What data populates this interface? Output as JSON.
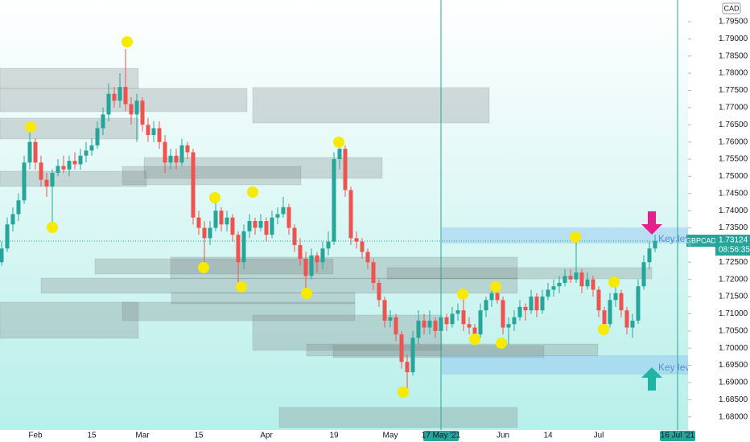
{
  "chart_data": {
    "type": "candlestick",
    "symbol": "GBPCAD",
    "currency": "CAD",
    "categories": [
      null,
      null,
      null,
      null,
      null,
      null,
      "Feb",
      null,
      null,
      null,
      null,
      null,
      null,
      null,
      null,
      null,
      "15",
      null,
      null,
      null,
      null,
      null,
      null,
      null,
      null,
      "Mar",
      null,
      null,
      null,
      null,
      null,
      null,
      null,
      null,
      null,
      "15",
      null,
      null,
      null,
      null,
      null,
      null,
      null,
      null,
      null,
      null,
      null,
      "Apr",
      null,
      null,
      null,
      null,
      null,
      null,
      null,
      null,
      null,
      null,
      null,
      "19",
      null,
      null,
      null,
      null,
      null,
      null,
      null,
      null,
      null,
      "May",
      null,
      null,
      null,
      null,
      null,
      null,
      null,
      null,
      "17 May '21",
      null,
      null,
      null,
      null,
      null,
      null,
      null,
      null,
      null,
      null,
      "Jun",
      null,
      null,
      null,
      null,
      null,
      null,
      null,
      "14",
      null,
      null,
      null,
      null,
      null,
      null,
      null,
      null,
      "Jul",
      null,
      null,
      null,
      null,
      null,
      null,
      null,
      null,
      null,
      null,
      null,
      null,
      null,
      "16 Jul '21"
    ],
    "ohlc": [
      [
        1.725,
        1.731,
        1.724,
        1.729
      ],
      [
        1.729,
        1.738,
        1.728,
        1.736
      ],
      [
        1.736,
        1.741,
        1.734,
        1.739
      ],
      [
        1.739,
        1.745,
        1.737,
        1.743
      ],
      [
        1.743,
        1.756,
        1.742,
        1.754
      ],
      [
        1.754,
        1.764,
        1.752,
        1.76
      ],
      [
        1.76,
        1.761,
        1.752,
        1.754
      ],
      [
        1.754,
        1.756,
        1.747,
        1.749
      ],
      [
        1.749,
        1.751,
        1.744,
        1.747
      ],
      [
        1.747,
        1.752,
        1.735,
        1.751
      ],
      [
        1.751,
        1.755,
        1.75,
        1.753
      ],
      [
        1.753,
        1.756,
        1.751,
        1.752
      ],
      [
        1.752,
        1.756,
        1.75,
        1.7545
      ],
      [
        1.7545,
        1.757,
        1.752,
        1.7535
      ],
      [
        1.7535,
        1.758,
        1.752,
        1.756
      ],
      [
        1.756,
        1.76,
        1.754,
        1.7575
      ],
      [
        1.7575,
        1.761,
        1.756,
        1.759
      ],
      [
        1.759,
        1.766,
        1.758,
        1.764
      ],
      [
        1.764,
        1.77,
        1.762,
        1.768
      ],
      [
        1.768,
        1.777,
        1.766,
        1.774
      ],
      [
        1.774,
        1.776,
        1.77,
        1.772
      ],
      [
        1.772,
        1.78,
        1.77,
        1.776
      ],
      [
        1.776,
        1.787,
        1.769,
        1.771
      ],
      [
        1.771,
        1.773,
        1.765,
        1.768
      ],
      [
        1.768,
        1.774,
        1.76,
        1.772
      ],
      [
        1.772,
        1.773,
        1.763,
        1.765
      ],
      [
        1.765,
        1.767,
        1.76,
        1.762
      ],
      [
        1.762,
        1.766,
        1.76,
        1.764
      ],
      [
        1.764,
        1.766,
        1.758,
        1.76
      ],
      [
        1.76,
        1.762,
        1.751,
        1.754
      ],
      [
        1.754,
        1.758,
        1.752,
        1.756
      ],
      [
        1.756,
        1.758,
        1.752,
        1.754
      ],
      [
        1.754,
        1.761,
        1.753,
        1.759
      ],
      [
        1.759,
        1.76,
        1.755,
        1.757
      ],
      [
        1.757,
        1.758,
        1.736,
        1.738
      ],
      [
        1.738,
        1.74,
        1.733,
        1.735
      ],
      [
        1.735,
        1.737,
        1.724,
        1.732
      ],
      [
        1.732,
        1.737,
        1.73,
        1.735
      ],
      [
        1.735,
        1.743,
        1.734,
        1.74
      ],
      [
        1.74,
        1.741,
        1.734,
        1.736
      ],
      [
        1.736,
        1.74,
        1.734,
        1.738
      ],
      [
        1.738,
        1.739,
        1.731,
        1.733
      ],
      [
        1.733,
        1.734,
        1.718,
        1.725
      ],
      [
        1.725,
        1.736,
        1.723,
        1.734
      ],
      [
        1.734,
        1.739,
        1.732,
        1.737
      ],
      [
        1.737,
        1.738,
        1.733,
        1.735
      ],
      [
        1.735,
        1.739,
        1.734,
        1.737
      ],
      [
        1.737,
        1.738,
        1.731,
        1.733
      ],
      [
        1.733,
        1.74,
        1.732,
        1.738
      ],
      [
        1.738,
        1.741,
        1.736,
        1.739
      ],
      [
        1.739,
        1.744,
        1.738,
        1.741
      ],
      [
        1.741,
        1.742,
        1.733,
        1.735
      ],
      [
        1.735,
        1.736,
        1.728,
        1.73
      ],
      [
        1.73,
        1.732,
        1.724,
        1.726
      ],
      [
        1.726,
        1.728,
        1.7165,
        1.721
      ],
      [
        1.721,
        1.729,
        1.72,
        1.727
      ],
      [
        1.727,
        1.728,
        1.722,
        1.725
      ],
      [
        1.725,
        1.731,
        1.723,
        1.729
      ],
      [
        1.729,
        1.734,
        1.727,
        1.731
      ],
      [
        1.731,
        1.757,
        1.73,
        1.755
      ],
      [
        1.755,
        1.76,
        1.752,
        1.758
      ],
      [
        1.758,
        1.759,
        1.744,
        1.746
      ],
      [
        1.746,
        1.747,
        1.73,
        1.732
      ],
      [
        1.732,
        1.734,
        1.729,
        1.731
      ],
      [
        1.731,
        1.732,
        1.726,
        1.728
      ],
      [
        1.728,
        1.729,
        1.723,
        1.725
      ],
      [
        1.725,
        1.726,
        1.717,
        1.719
      ],
      [
        1.719,
        1.72,
        1.712,
        1.714
      ],
      [
        1.714,
        1.715,
        1.706,
        1.708
      ],
      [
        1.708,
        1.711,
        1.706,
        1.709
      ],
      [
        1.709,
        1.71,
        1.702,
        1.704
      ],
      [
        1.704,
        1.705,
        1.694,
        1.696
      ],
      [
        1.696,
        1.698,
        1.687,
        1.693
      ],
      [
        1.693,
        1.705,
        1.692,
        1.703
      ],
      [
        1.703,
        1.711,
        1.701,
        1.708
      ],
      [
        1.708,
        1.71,
        1.704,
        1.706
      ],
      [
        1.706,
        1.711,
        1.704,
        1.708
      ],
      [
        1.708,
        1.709,
        1.703,
        1.705
      ],
      [
        1.705,
        1.711,
        1.704,
        1.709
      ],
      [
        1.709,
        1.71,
        1.705,
        1.707
      ],
      [
        1.707,
        1.712,
        1.706,
        1.71
      ],
      [
        1.71,
        1.713,
        1.708,
        1.711
      ],
      [
        1.711,
        1.716,
        1.705,
        1.707
      ],
      [
        1.707,
        1.709,
        1.704,
        1.706
      ],
      [
        1.706,
        1.707,
        1.7015,
        1.704
      ],
      [
        1.704,
        1.713,
        1.703,
        1.711
      ],
      [
        1.711,
        1.715,
        1.709,
        1.714
      ],
      [
        1.714,
        1.717,
        1.712,
        1.716
      ],
      [
        1.716,
        1.718,
        1.713,
        1.714
      ],
      [
        1.714,
        1.715,
        1.704,
        1.706
      ],
      [
        1.706,
        1.709,
        1.701,
        1.707
      ],
      [
        1.707,
        1.711,
        1.705,
        1.709
      ],
      [
        1.709,
        1.714,
        1.708,
        1.712
      ],
      [
        1.712,
        1.713,
        1.708,
        1.711
      ],
      [
        1.711,
        1.717,
        1.71,
        1.715
      ],
      [
        1.715,
        1.716,
        1.709,
        1.711
      ],
      [
        1.711,
        1.717,
        1.71,
        1.715
      ],
      [
        1.715,
        1.719,
        1.714,
        1.717
      ],
      [
        1.717,
        1.72,
        1.715,
        1.718
      ],
      [
        1.718,
        1.721,
        1.716,
        1.719
      ],
      [
        1.719,
        1.723,
        1.718,
        1.721
      ],
      [
        1.721,
        1.723,
        1.719,
        1.72
      ],
      [
        1.72,
        1.731,
        1.719,
        1.722
      ],
      [
        1.722,
        1.723,
        1.716,
        1.718
      ],
      [
        1.718,
        1.722,
        1.717,
        1.72
      ],
      [
        1.72,
        1.721,
        1.715,
        1.717
      ],
      [
        1.717,
        1.718,
        1.709,
        1.711
      ],
      [
        1.711,
        1.712,
        1.705,
        1.707
      ],
      [
        1.707,
        1.716,
        1.706,
        1.714
      ],
      [
        1.714,
        1.719,
        1.712,
        1.716
      ],
      [
        1.716,
        1.717,
        1.709,
        1.711
      ],
      [
        1.711,
        1.712,
        1.704,
        1.706
      ],
      [
        1.706,
        1.71,
        1.703,
        1.708
      ],
      [
        1.708,
        1.72,
        1.707,
        1.718
      ],
      [
        1.718,
        1.727,
        1.717,
        1.725
      ],
      [
        1.725,
        1.731,
        1.723,
        1.729
      ],
      [
        1.729,
        1.733,
        1.728,
        1.7312
      ],
      null,
      null,
      null,
      null
    ],
    "up_color": "#26a69a",
    "down_color": "#ef5350",
    "last_price": 1.73124,
    "countdown": "08:56:35",
    "annotations": [
      "Key level",
      "Key level"
    ],
    "ylim": [
      1.6762,
      1.8013
    ],
    "yticks": [
      {
        "value": 1.68,
        "label": "1.68000"
      },
      {
        "value": 1.685,
        "label": "1.68500"
      },
      {
        "value": 1.69,
        "label": "1.69000"
      },
      {
        "value": 1.695,
        "label": "1.69500"
      },
      {
        "value": 1.7,
        "label": "1.70000"
      },
      {
        "value": 1.705,
        "label": "1.70500"
      },
      {
        "value": 1.71,
        "label": "1.71000"
      },
      {
        "value": 1.715,
        "label": "1.71500"
      },
      {
        "value": 1.72,
        "label": "1.72000"
      },
      {
        "value": 1.725,
        "label": "1.72500"
      },
      {
        "value": 1.73,
        "label": "1.73000"
      },
      {
        "value": 1.735,
        "label": "1.73500"
      },
      {
        "value": 1.74,
        "label": "1.74000"
      },
      {
        "value": 1.745,
        "label": "1.74500"
      },
      {
        "value": 1.75,
        "label": "1.75000"
      },
      {
        "value": 1.755,
        "label": "1.75500"
      },
      {
        "value": 1.76,
        "label": "1.76000"
      },
      {
        "value": 1.765,
        "label": "1.76500"
      },
      {
        "value": 1.77,
        "label": "1.77000"
      },
      {
        "value": 1.775,
        "label": "1.77500"
      },
      {
        "value": 1.78,
        "label": "1.78000"
      },
      {
        "value": 1.785,
        "label": "1.78500"
      },
      {
        "value": 1.79,
        "label": "1.79000"
      },
      {
        "value": 1.795,
        "label": "1.79500"
      }
    ],
    "grid": false
  }
}
